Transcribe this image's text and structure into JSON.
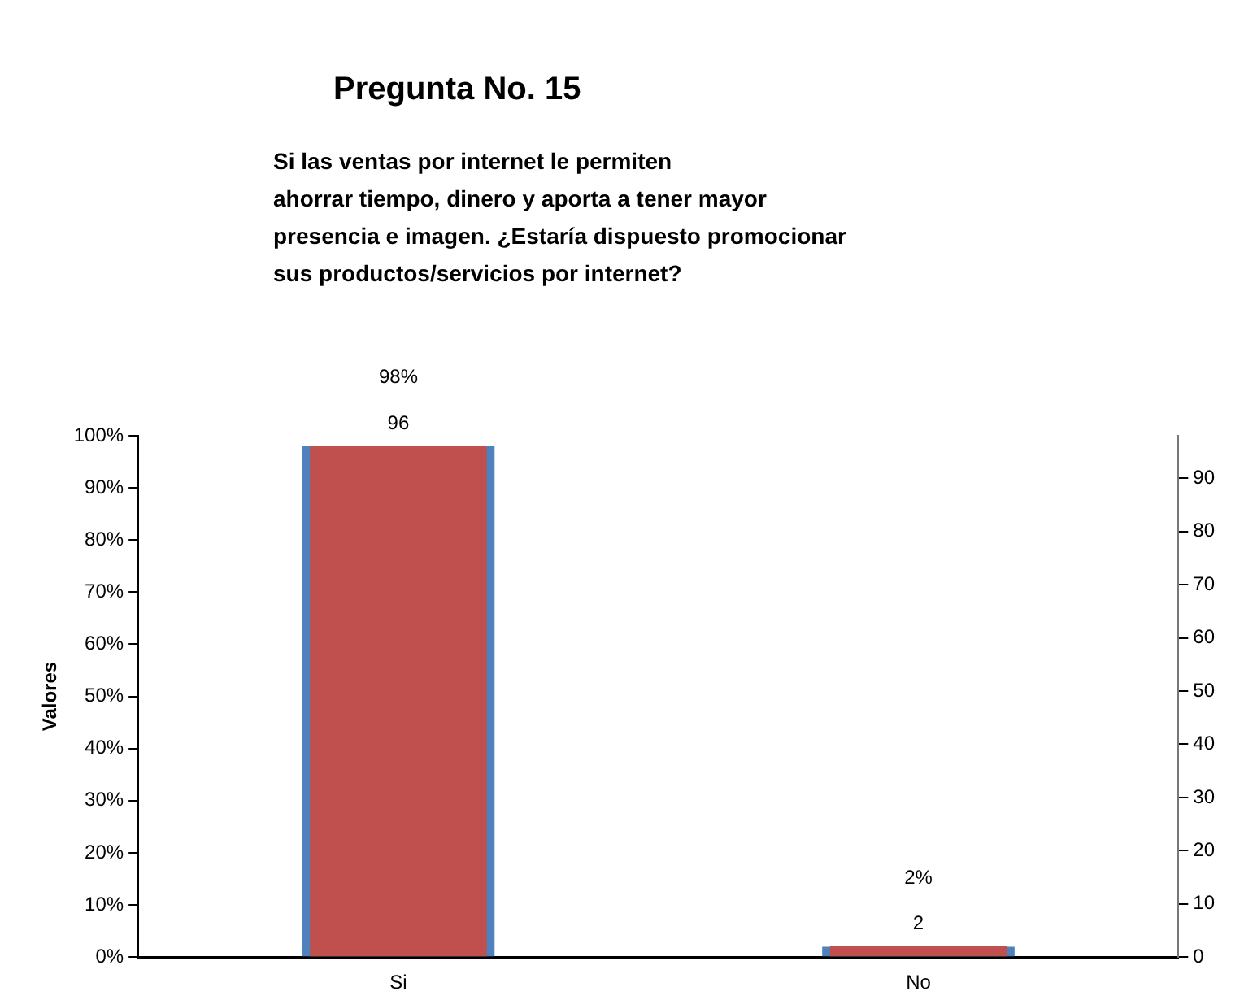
{
  "chart_data": {
    "type": "bar",
    "title": "Pregunta No. 15",
    "subtitle": "Si las ventas por internet  le permiten\nahorrar tiempo, dinero  y aporta a tener mayor\npresencia  e imagen.  ¿Estaría dispuesto  promocionar\nsus productos/servicios  por internet?",
    "ylabel": "Valores",
    "categories": [
      "Si",
      "No"
    ],
    "series": [
      {
        "color": "#4f81bd",
        "values": [
          98,
          2
        ],
        "value_labels": [
          "98%",
          "2%"
        ]
      },
      {
        "color": "#c0504d",
        "values": [
          96,
          2
        ],
        "axis": "y2",
        "value_labels": [
          "96",
          "2"
        ]
      }
    ],
    "ylim": [
      0,
      100
    ],
    "yticks": [
      {
        "value": 0,
        "label": "0%"
      },
      {
        "value": 10,
        "label": "10%"
      },
      {
        "value": 20,
        "label": "20%"
      },
      {
        "value": 30,
        "label": "30%"
      },
      {
        "value": 40,
        "label": "40%"
      },
      {
        "value": 50,
        "label": "50%"
      },
      {
        "value": 60,
        "label": "60%"
      },
      {
        "value": 70,
        "label": "70%"
      },
      {
        "value": 80,
        "label": "80%"
      },
      {
        "value": 90,
        "label": "90%"
      },
      {
        "value": 100,
        "label": "100%"
      }
    ],
    "y2lim": [
      0,
      98
    ],
    "y2ticks": [
      0,
      10,
      20,
      30,
      40,
      50,
      60,
      70,
      80,
      90
    ],
    "grid": false,
    "legend": false
  }
}
